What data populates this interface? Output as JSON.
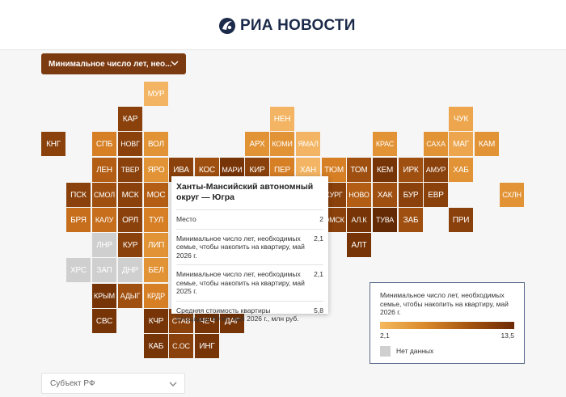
{
  "header": {
    "logo_text": "РИА НОВОСТИ"
  },
  "indicator_select": {
    "value": "Минимальное число лет, нео..."
  },
  "subject_select": {
    "placeholder": "Субъект РФ"
  },
  "colors": {
    "c1": "#f3b563",
    "c2": "#eda64e",
    "c3": "#e29335",
    "c4": "#d67f25",
    "c5": "#c66e1c",
    "c6": "#b35e14",
    "c7": "#9f4f10",
    "c8": "#8a410b",
    "c9": "#763407",
    "c10": "#642a05",
    "nodata": "#cfcfcf"
  },
  "tiles": [
    {
      "label": "МУР",
      "c": "c1"
    },
    {
      "label": "КАР",
      "c": "c8"
    },
    {
      "label": "НЕН",
      "c": "c1"
    },
    {
      "label": "ЧУК",
      "c": "c2"
    },
    {
      "label": "КНГ",
      "c": "c8"
    },
    {
      "label": "СПБ",
      "c": "c4"
    },
    {
      "label": "НОВГ",
      "c": "c8"
    },
    {
      "label": "ВОЛ",
      "c": "c3"
    },
    {
      "label": "АРХ",
      "c": "c3"
    },
    {
      "label": "КОМИ",
      "c": "c3"
    },
    {
      "label": "ЯМАЛ",
      "c": "c1"
    },
    {
      "label": "КРАС",
      "c": "c3"
    },
    {
      "label": "САХА",
      "c": "c3"
    },
    {
      "label": "МАГ",
      "c": "c2"
    },
    {
      "label": "КАМ",
      "c": "c3"
    },
    {
      "label": "ЛЕН",
      "c": "c6"
    },
    {
      "label": "ТВЕР",
      "c": "c8"
    },
    {
      "label": "ЯРО",
      "c": "c3"
    },
    {
      "label": "ИВА",
      "c": "c8"
    },
    {
      "label": "КОС",
      "c": "c7"
    },
    {
      "label": "МАРИ",
      "c": "c9"
    },
    {
      "label": "КИР",
      "c": "c8"
    },
    {
      "label": "ПЕР",
      "c": "c4"
    },
    {
      "label": "ХАН",
      "c": "c1"
    },
    {
      "label": "ТЮМ",
      "c": "c4"
    },
    {
      "label": "ТОМ",
      "c": "c7"
    },
    {
      "label": "КЕМ",
      "c": "c9"
    },
    {
      "label": "ИРК",
      "c": "c7"
    },
    {
      "label": "АМУР",
      "c": "c8"
    },
    {
      "label": "ХАБ",
      "c": "c3"
    },
    {
      "label": "ПСК",
      "c": "c8"
    },
    {
      "label": "СМОЛ",
      "c": "c7"
    },
    {
      "label": "МСК",
      "c": "c8"
    },
    {
      "label": "МОС",
      "c": "c6"
    },
    {
      "label": "КУРГ",
      "c": "c8"
    },
    {
      "label": "НОВО",
      "c": "c6"
    },
    {
      "label": "ХАК",
      "c": "c7"
    },
    {
      "label": "БУР",
      "c": "c8"
    },
    {
      "label": "ЕВР",
      "c": "c8"
    },
    {
      "label": "СХЛН",
      "c": "c3"
    },
    {
      "label": "БРЯ",
      "c": "c5"
    },
    {
      "label": "КАЛУ",
      "c": "c5"
    },
    {
      "label": "ОРЛ",
      "c": "c8"
    },
    {
      "label": "ТУЛ",
      "c": "c4"
    },
    {
      "label": "ОМСК",
      "c": "c8"
    },
    {
      "label": "АЛ.К",
      "c": "c9"
    },
    {
      "label": "ТУВА",
      "c": "c10"
    },
    {
      "label": "ЗАБ",
      "c": "c7"
    },
    {
      "label": "ПРИ",
      "c": "c8"
    },
    {
      "label": "ЛНР",
      "c": "nodata"
    },
    {
      "label": "КУР",
      "c": "c8"
    },
    {
      "label": "ЛИП",
      "c": "c3"
    },
    {
      "label": "АЛТ",
      "c": "c9"
    },
    {
      "label": "ХРС",
      "c": "nodata"
    },
    {
      "label": "ЗАП",
      "c": "nodata"
    },
    {
      "label": "ДНР",
      "c": "nodata"
    },
    {
      "label": "БЕЛ",
      "c": "c3"
    },
    {
      "label": "КРЫМ",
      "c": "c9"
    },
    {
      "label": "АДЫГ",
      "c": "c7"
    },
    {
      "label": "КРДР",
      "c": "c4"
    },
    {
      "label": "СВС",
      "c": "c9"
    },
    {
      "label": "КЧР",
      "c": "c9"
    },
    {
      "label": "СТАВ",
      "c": "c8"
    },
    {
      "label": "ЧЕЧ",
      "c": "c9"
    },
    {
      "label": "ДАГ",
      "c": "c9"
    },
    {
      "label": "КАБ",
      "c": "c9"
    },
    {
      "label": "С.ОС",
      "c": "c8"
    },
    {
      "label": "ИНГ",
      "c": "c9"
    }
  ],
  "tooltip": {
    "title": "Ханты-Мансийский автономный округ — Югра",
    "rows": [
      {
        "label": "Место",
        "value": "2"
      },
      {
        "label": "Минимальное число лет, необходимых семье, чтобы накопить на квартиру, май 2026 г.",
        "value": "2,1"
      },
      {
        "label": "Минимальное число лет, необходимых семье, чтобы накопить на квартиру, май 2025 г.",
        "value": "2,1"
      },
      {
        "label": "Средняя стоимость квартиры площадью 60 м², май 2026 г., млн руб.",
        "value": "5,8"
      }
    ]
  },
  "legend": {
    "title": "Минимальное число лет, необходимых семье, чтобы накопить на квартиру, май 2026 г.",
    "min": "2,1",
    "max": "13,5",
    "nodata_label": "Нет данных"
  }
}
